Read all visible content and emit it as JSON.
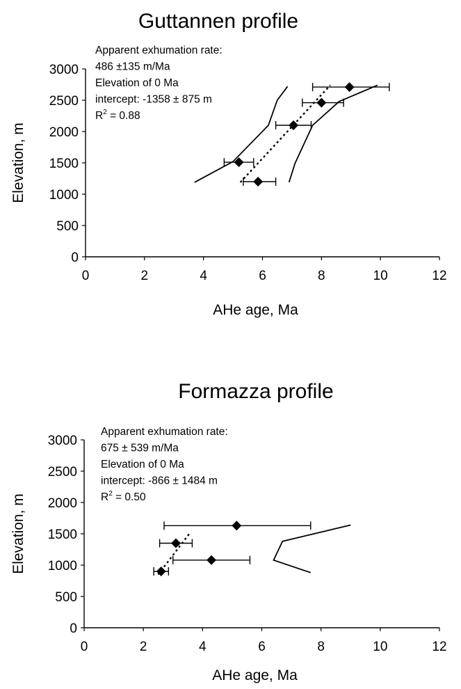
{
  "chart_data": [
    {
      "type": "scatter",
      "title": "Guttannen profile",
      "xlabel": "AHe age, Ma",
      "ylabel": "Elevation, m",
      "xlim": [
        0,
        12
      ],
      "ylim": [
        0,
        3000
      ],
      "xticks": [
        0,
        2,
        4,
        6,
        8,
        10,
        12
      ],
      "yticks": [
        0,
        500,
        1000,
        1500,
        2000,
        2500,
        3000
      ],
      "annotation_lines": [
        "Apparent exhumation rate:",
        "486 ±135 m/Ma",
        "Elevation of 0 Ma",
        "intercept:  -1358 ± 875 m",
        "R^2 = 0.88"
      ],
      "r2_label": {
        "prefix": "R",
        "exponent": "2",
        "suffix": " = 0.88"
      },
      "points": [
        {
          "x": 8.95,
          "y": 2710,
          "xerr_low": 7.7,
          "xerr_high": 10.3
        },
        {
          "x": 8.0,
          "y": 2460,
          "xerr_low": 7.35,
          "xerr_high": 8.75
        },
        {
          "x": 7.05,
          "y": 2100,
          "xerr_low": 6.45,
          "xerr_high": 7.65
        },
        {
          "x": 5.2,
          "y": 1510,
          "xerr_low": 4.7,
          "xerr_high": 5.7
        },
        {
          "x": 5.85,
          "y": 1200,
          "xerr_low": 5.35,
          "xerr_high": 6.45
        }
      ],
      "regression_line": [
        [
          5.25,
          1190
        ],
        [
          8.3,
          2740
        ]
      ],
      "confidence_left": [
        [
          3.7,
          1190
        ],
        [
          5.0,
          1520
        ],
        [
          6.2,
          2100
        ],
        [
          6.5,
          2500
        ],
        [
          6.85,
          2720
        ]
      ],
      "confidence_right": [
        [
          6.9,
          1190
        ],
        [
          7.1,
          1490
        ],
        [
          7.7,
          2100
        ],
        [
          8.6,
          2480
        ],
        [
          9.9,
          2740
        ]
      ]
    },
    {
      "type": "scatter",
      "title": "Formazza profile",
      "xlabel": "AHe age, Ma",
      "ylabel": "Elevation, m",
      "xlim": [
        0,
        12
      ],
      "ylim": [
        0,
        3000
      ],
      "xticks": [
        0,
        2,
        4,
        6,
        8,
        10,
        12
      ],
      "yticks": [
        0,
        500,
        1000,
        1500,
        2000,
        2500,
        3000
      ],
      "annotation_lines": [
        "Apparent exhumation rate:",
        "675 ± 539 m/Ma",
        "Elevation of 0 Ma",
        "intercept:  -866 ± 1484 m",
        "R^2 = 0.50"
      ],
      "r2_label": {
        "prefix": "R",
        "exponent": "2",
        "suffix": " = 0.50"
      },
      "points": [
        {
          "x": 5.15,
          "y": 1630,
          "xerr_low": 2.7,
          "xerr_high": 7.65
        },
        {
          "x": 3.1,
          "y": 1350,
          "xerr_low": 2.55,
          "xerr_high": 3.65
        },
        {
          "x": 4.3,
          "y": 1080,
          "xerr_low": 3.0,
          "xerr_high": 5.6
        },
        {
          "x": 2.6,
          "y": 900,
          "xerr_low": 2.35,
          "xerr_high": 2.85
        }
      ],
      "regression_line": [
        [
          2.5,
          850
        ],
        [
          3.55,
          1500
        ]
      ],
      "confidence_left": [],
      "confidence_right": [
        [
          9.0,
          1640
        ],
        [
          6.7,
          1380
        ],
        [
          6.4,
          1080
        ],
        [
          7.65,
          880
        ]
      ]
    }
  ]
}
